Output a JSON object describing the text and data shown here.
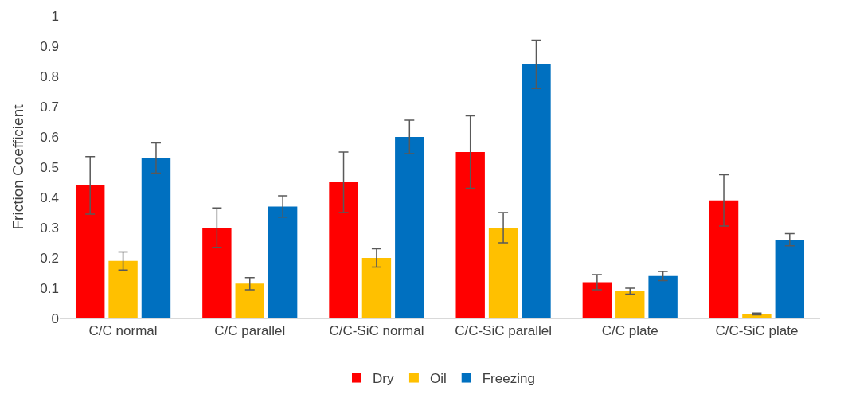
{
  "chart_data": {
    "type": "bar",
    "ylabel": "Friction Coefficient",
    "categories": [
      "C/C normal",
      "C/C parallel",
      "C/C-SiC normal",
      "C/C-SiC parallel",
      "C/C plate",
      "C/C-SiC plate"
    ],
    "series": [
      {
        "name": "Dry",
        "color": "#ff0000",
        "values": [
          0.44,
          0.3,
          0.45,
          0.55,
          0.12,
          0.39
        ],
        "errors": [
          0.095,
          0.065,
          0.1,
          0.12,
          0.025,
          0.085
        ]
      },
      {
        "name": "Oil",
        "color": "#ffc000",
        "values": [
          0.19,
          0.115,
          0.2,
          0.3,
          0.09,
          0.015
        ],
        "errors": [
          0.03,
          0.02,
          0.03,
          0.05,
          0.01,
          0.003
        ]
      },
      {
        "name": "Freezing",
        "color": "#0070c0",
        "values": [
          0.53,
          0.37,
          0.6,
          0.84,
          0.14,
          0.26
        ],
        "errors": [
          0.05,
          0.035,
          0.055,
          0.08,
          0.015,
          0.02
        ]
      }
    ],
    "ylim": [
      0,
      1
    ],
    "yticks": [
      0,
      0.1,
      0.2,
      0.3,
      0.4,
      0.5,
      0.6,
      0.7,
      0.8,
      0.9,
      1
    ],
    "legend": "bottom"
  }
}
